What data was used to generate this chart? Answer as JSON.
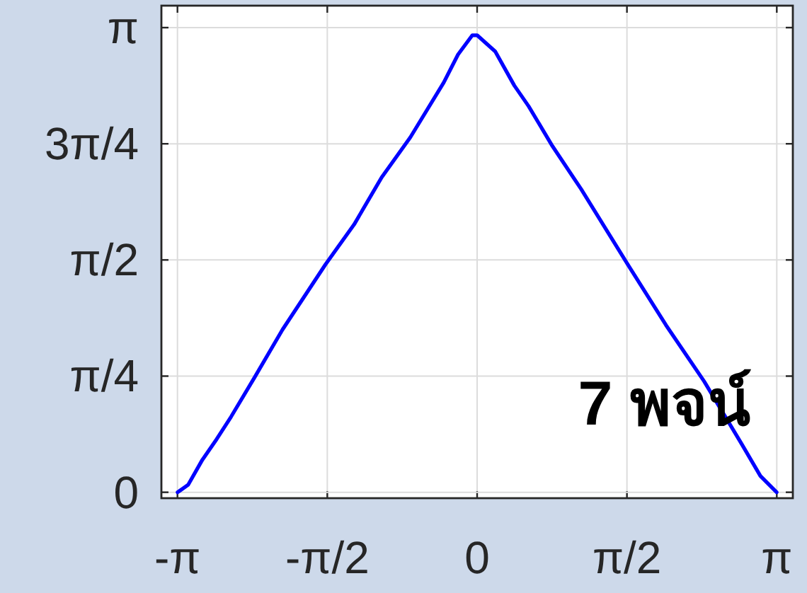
{
  "chart_data": {
    "type": "line",
    "annotations": [
      "7 พจน์"
    ],
    "x": [
      -3.14,
      -3.03,
      -2.88,
      -2.73,
      -2.58,
      -2.33,
      -2.04,
      -1.59,
      -1.29,
      -1.0,
      -0.7,
      -0.35,
      -0.2,
      -0.05,
      0.0,
      0.19,
      0.39,
      0.54,
      0.79,
      1.09,
      1.58,
      1.98,
      2.38,
      2.77,
      2.97,
      3.14
    ],
    "series": [
      {
        "color": "#0000ff",
        "values": [
          0.0,
          0.05,
          0.22,
          0.36,
          0.51,
          0.78,
          1.1,
          1.54,
          1.81,
          2.13,
          2.4,
          2.77,
          2.96,
          3.09,
          3.09,
          2.98,
          2.75,
          2.61,
          2.34,
          2.05,
          1.54,
          1.13,
          0.75,
          0.33,
          0.11,
          0.0
        ]
      }
    ],
    "xlim": [
      -3.31,
      3.31
    ],
    "ylim": [
      -0.04,
      3.29
    ],
    "xticks": [
      {
        "value": -3.1416,
        "label": "-π"
      },
      {
        "value": -1.5708,
        "label": "-π/2"
      },
      0,
      {
        "value": 1.5708,
        "label": "π/2"
      },
      {
        "value": 3.1416,
        "label": "π"
      }
    ],
    "yticks": [
      0,
      {
        "value": 0.7854,
        "label": "π/4"
      },
      {
        "value": 1.5708,
        "label": "π/2"
      },
      {
        "value": 2.3562,
        "label": "3π/4"
      },
      {
        "value": 3.1416,
        "label": "π"
      }
    ],
    "grid": true,
    "marker": "none",
    "line_style": "solid"
  }
}
